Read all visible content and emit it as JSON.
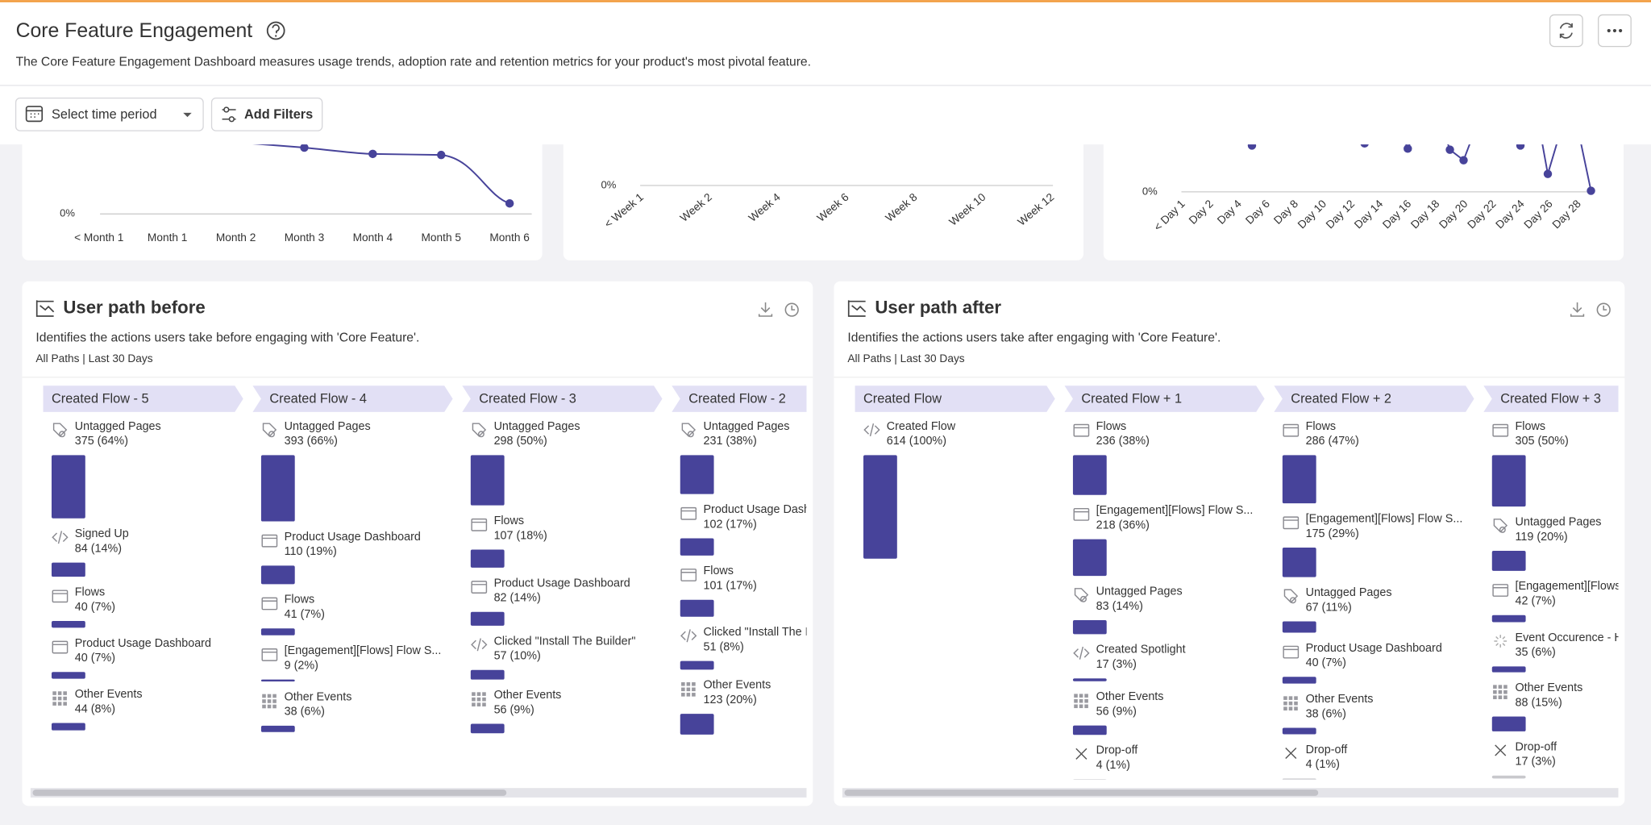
{
  "header": {
    "title": "Core Feature Engagement",
    "description": "The Core Feature Engagement Dashboard measures usage trends, adoption rate and retention metrics for your product's most pivotal feature."
  },
  "toolbar": {
    "time_placeholder": "Select time period",
    "filters_button": "Add Filters"
  },
  "bar_color": "#47439a",
  "top_charts": [
    {
      "zero_label": "0%",
      "x_labels": [
        "< Month 1",
        "Month 1",
        "Month 2",
        "Month 3",
        "Month 4",
        "Month 5",
        "Month 6"
      ]
    },
    {
      "zero_label": "0%",
      "x_labels": [
        "< Week 1",
        "Week 2",
        "Week 4",
        "Week 6",
        "Week 8",
        "Week 10",
        "Week 12"
      ]
    },
    {
      "zero_label": "0%",
      "x_labels": [
        "< Day 1",
        "Day 2",
        "Day 4",
        "Day 6",
        "Day 8",
        "Day 10",
        "Day 12",
        "Day 14",
        "Day 16",
        "Day 18",
        "Day 20",
        "Day 22",
        "Day 24",
        "Day 26",
        "Day 28"
      ]
    }
  ],
  "panels": [
    {
      "title": "User path before",
      "description": "Identifies the actions users take before engaging with 'Core Feature'.",
      "subtitle": "All Paths | Last 30 Days",
      "columns": [
        {
          "header": "Created Flow - 5",
          "items": [
            {
              "icon": "tag",
              "name": "Untagged Pages",
              "count": 375,
              "label": "375 (64%)"
            },
            {
              "icon": "code",
              "name": "Signed Up",
              "count": 84,
              "label": "84 (14%)"
            },
            {
              "icon": "page",
              "name": "Flows",
              "count": 40,
              "label": "40 (7%)"
            },
            {
              "icon": "page",
              "name": "Product Usage Dashboard",
              "count": 40,
              "label": "40 (7%)"
            },
            {
              "icon": "grid",
              "name": "Other Events",
              "count": 44,
              "label": "44 (8%)"
            }
          ]
        },
        {
          "header": "Created Flow - 4",
          "items": [
            {
              "icon": "tag",
              "name": "Untagged Pages",
              "count": 393,
              "label": "393 (66%)"
            },
            {
              "icon": "page",
              "name": "Product Usage Dashboard",
              "count": 110,
              "label": "110 (19%)"
            },
            {
              "icon": "page",
              "name": "Flows",
              "count": 41,
              "label": "41 (7%)"
            },
            {
              "icon": "page",
              "name": "[Engagement][Flows] Flow S...",
              "count": 9,
              "label": "9 (2%)"
            },
            {
              "icon": "grid",
              "name": "Other Events",
              "count": 38,
              "label": "38 (6%)"
            }
          ]
        },
        {
          "header": "Created Flow - 3",
          "items": [
            {
              "icon": "tag",
              "name": "Untagged Pages",
              "count": 298,
              "label": "298 (50%)"
            },
            {
              "icon": "page",
              "name": "Flows",
              "count": 107,
              "label": "107 (18%)"
            },
            {
              "icon": "page",
              "name": "Product Usage Dashboard",
              "count": 82,
              "label": "82 (14%)"
            },
            {
              "icon": "code",
              "name": "Clicked \"Install The Builder\"",
              "count": 57,
              "label": "57 (10%)"
            },
            {
              "icon": "grid",
              "name": "Other Events",
              "count": 56,
              "label": "56 (9%)"
            }
          ]
        },
        {
          "header": "Created Flow - 2",
          "items": [
            {
              "icon": "tag",
              "name": "Untagged Pages",
              "count": 231,
              "label": "231 (38%)"
            },
            {
              "icon": "page",
              "name": "Product Usage Dashb",
              "count": 102,
              "label": "102 (17%)"
            },
            {
              "icon": "page",
              "name": "Flows",
              "count": 101,
              "label": "101 (17%)"
            },
            {
              "icon": "code",
              "name": "Clicked \"Install The Bu",
              "count": 51,
              "label": "51 (8%)"
            },
            {
              "icon": "grid",
              "name": "Other Events",
              "count": 123,
              "label": "123 (20%)"
            }
          ]
        }
      ]
    },
    {
      "title": "User path after",
      "description": "Identifies the actions users take after engaging with 'Core Feature'.",
      "subtitle": "All Paths | Last 30 Days",
      "columns": [
        {
          "header": "Created Flow",
          "items": [
            {
              "icon": "code",
              "name": "Created Flow",
              "count": 614,
              "label": "614 (100%)"
            }
          ]
        },
        {
          "header": "Created Flow + 1",
          "items": [
            {
              "icon": "page",
              "name": "Flows",
              "count": 236,
              "label": "236 (38%)"
            },
            {
              "icon": "page",
              "name": "[Engagement][Flows] Flow S...",
              "count": 218,
              "label": "218 (36%)"
            },
            {
              "icon": "tag",
              "name": "Untagged Pages",
              "count": 83,
              "label": "83 (14%)"
            },
            {
              "icon": "code",
              "name": "Created Spotlight",
              "count": 17,
              "label": "17 (3%)"
            },
            {
              "icon": "grid",
              "name": "Other Events",
              "count": 56,
              "label": "56 (9%)"
            },
            {
              "icon": "drop",
              "name": "Drop-off",
              "count": 4,
              "label": "4 (1%)"
            }
          ]
        },
        {
          "header": "Created Flow + 2",
          "items": [
            {
              "icon": "page",
              "name": "Flows",
              "count": 286,
              "label": "286 (47%)"
            },
            {
              "icon": "page",
              "name": "[Engagement][Flows] Flow S...",
              "count": 175,
              "label": "175 (29%)"
            },
            {
              "icon": "tag",
              "name": "Untagged Pages",
              "count": 67,
              "label": "67 (11%)"
            },
            {
              "icon": "page",
              "name": "Product Usage Dashboard",
              "count": 40,
              "label": "40 (7%)"
            },
            {
              "icon": "grid",
              "name": "Other Events",
              "count": 38,
              "label": "38 (6%)"
            },
            {
              "icon": "drop",
              "name": "Drop-off",
              "count": 4,
              "label": "4 (1%)"
            }
          ]
        },
        {
          "header": "Created Flow + 3",
          "items": [
            {
              "icon": "page",
              "name": "Flows",
              "count": 305,
              "label": "305 (50%)"
            },
            {
              "icon": "tag",
              "name": "Untagged Pages",
              "count": 119,
              "label": "119 (20%)"
            },
            {
              "icon": "page",
              "name": "[Engagement][Flows]",
              "count": 42,
              "label": "42 (7%)"
            },
            {
              "icon": "spinner",
              "name": "Event Occurence - Ho",
              "count": 35,
              "label": "35 (6%)"
            },
            {
              "icon": "grid",
              "name": "Other Events",
              "count": 88,
              "label": "88 (15%)"
            },
            {
              "icon": "drop",
              "name": "Drop-off",
              "count": 17,
              "label": "17 (3%)"
            }
          ]
        }
      ]
    }
  ]
}
